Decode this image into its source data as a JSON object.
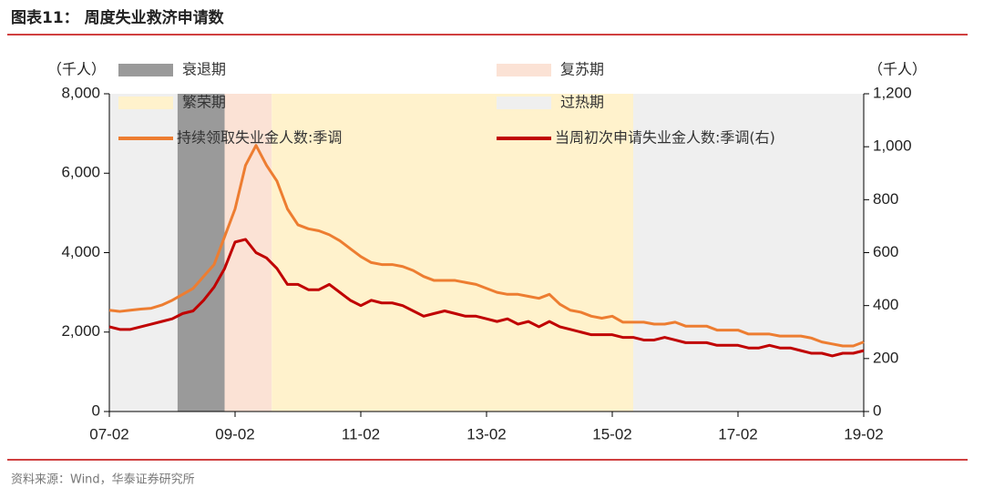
{
  "chart_data": {
    "type": "line",
    "title": "图表11： 周度失业救济申请数",
    "source": "资料来源：Wind，华泰证券研究所",
    "y_label": "（千人）",
    "y2_label": "（千人）",
    "x": [
      "07-02",
      "07-04",
      "07-06",
      "07-08",
      "07-10",
      "07-12",
      "08-02",
      "08-04",
      "08-06",
      "08-08",
      "08-10",
      "08-12",
      "09-02",
      "09-04",
      "09-06",
      "09-08",
      "09-10",
      "09-12",
      "10-02",
      "10-04",
      "10-06",
      "10-08",
      "10-10",
      "10-12",
      "11-02",
      "11-04",
      "11-06",
      "11-08",
      "11-10",
      "11-12",
      "12-02",
      "12-04",
      "12-06",
      "12-08",
      "12-10",
      "12-12",
      "13-02",
      "13-04",
      "13-06",
      "13-08",
      "13-10",
      "13-12",
      "14-02",
      "14-04",
      "14-06",
      "14-08",
      "14-10",
      "14-12",
      "15-02",
      "15-04",
      "15-06",
      "15-08",
      "15-10",
      "15-12",
      "16-02",
      "16-04",
      "16-06",
      "16-08",
      "16-10",
      "16-12",
      "17-02",
      "17-04",
      "17-06",
      "17-08",
      "17-10",
      "17-12",
      "18-02",
      "18-04",
      "18-06",
      "18-08",
      "18-10",
      "18-12",
      "19-02"
    ],
    "xlim": [
      "07-02",
      "19-02"
    ],
    "xticks": [
      "07-02",
      "09-02",
      "11-02",
      "13-02",
      "15-02",
      "17-02",
      "19-02"
    ],
    "ylim": [
      0,
      8000
    ],
    "yticks": [
      0,
      {
        "value": 2000,
        "label": "2,000"
      },
      {
        "value": 4000,
        "label": "4,000"
      },
      {
        "value": 6000,
        "label": "6,000"
      },
      {
        "value": 8000,
        "label": "8,000"
      }
    ],
    "y2lim": [
      0,
      1200
    ],
    "y2ticks": [
      0,
      200,
      400,
      600,
      800,
      {
        "value": 1000,
        "label": "1,000"
      },
      {
        "value": 1200,
        "label": "1,200"
      }
    ],
    "phases": [
      {
        "name": "衰退期",
        "color": "#9a9a9a",
        "spans": [
          [
            "08-03",
            "08-12"
          ]
        ]
      },
      {
        "name": "复苏期",
        "color": "#fbe2d5",
        "spans": [
          [
            "08-12",
            "09-09"
          ]
        ]
      },
      {
        "name": "繁荣期",
        "color": "#fff2cc",
        "spans": [
          [
            "09-09",
            "15-06"
          ]
        ]
      },
      {
        "name": "过热期",
        "color": "#efefef",
        "spans": [
          [
            "07-02",
            "08-03"
          ],
          [
            "15-06",
            "19-02"
          ]
        ]
      }
    ],
    "series": [
      {
        "name": "持续领取失业金人数:季调",
        "color": "#ed7d31",
        "values": [
          2550,
          2520,
          2550,
          2580,
          2600,
          2680,
          2800,
          2950,
          3100,
          3400,
          3700,
          4400,
          5100,
          6200,
          6700,
          6200,
          5800,
          5100,
          4700,
          4600,
          4550,
          4450,
          4300,
          4100,
          3900,
          3750,
          3700,
          3700,
          3650,
          3550,
          3400,
          3300,
          3300,
          3300,
          3250,
          3200,
          3100,
          3000,
          2950,
          2950,
          2900,
          2850,
          2950,
          2700,
          2550,
          2500,
          2400,
          2350,
          2400,
          2250,
          2250,
          2250,
          2200,
          2200,
          2250,
          2150,
          2150,
          2150,
          2050,
          2050,
          2050,
          1950,
          1950,
          1950,
          1900,
          1900,
          1900,
          1850,
          1750,
          1700,
          1650,
          1650,
          1750
        ]
      },
      {
        "name": "当周初次申请失业金人数:季调(右)",
        "color": "#c00000",
        "axis": "y2",
        "values": [
          320,
          310,
          310,
          320,
          330,
          340,
          350,
          370,
          380,
          420,
          470,
          540,
          640,
          650,
          600,
          580,
          540,
          480,
          480,
          460,
          460,
          480,
          450,
          420,
          400,
          420,
          410,
          410,
          400,
          380,
          360,
          370,
          380,
          370,
          360,
          360,
          350,
          340,
          350,
          330,
          340,
          320,
          340,
          320,
          310,
          300,
          290,
          290,
          290,
          280,
          280,
          270,
          270,
          280,
          270,
          260,
          260,
          260,
          250,
          250,
          250,
          240,
          240,
          250,
          240,
          240,
          230,
          220,
          220,
          210,
          220,
          220,
          230
        ]
      }
    ]
  }
}
